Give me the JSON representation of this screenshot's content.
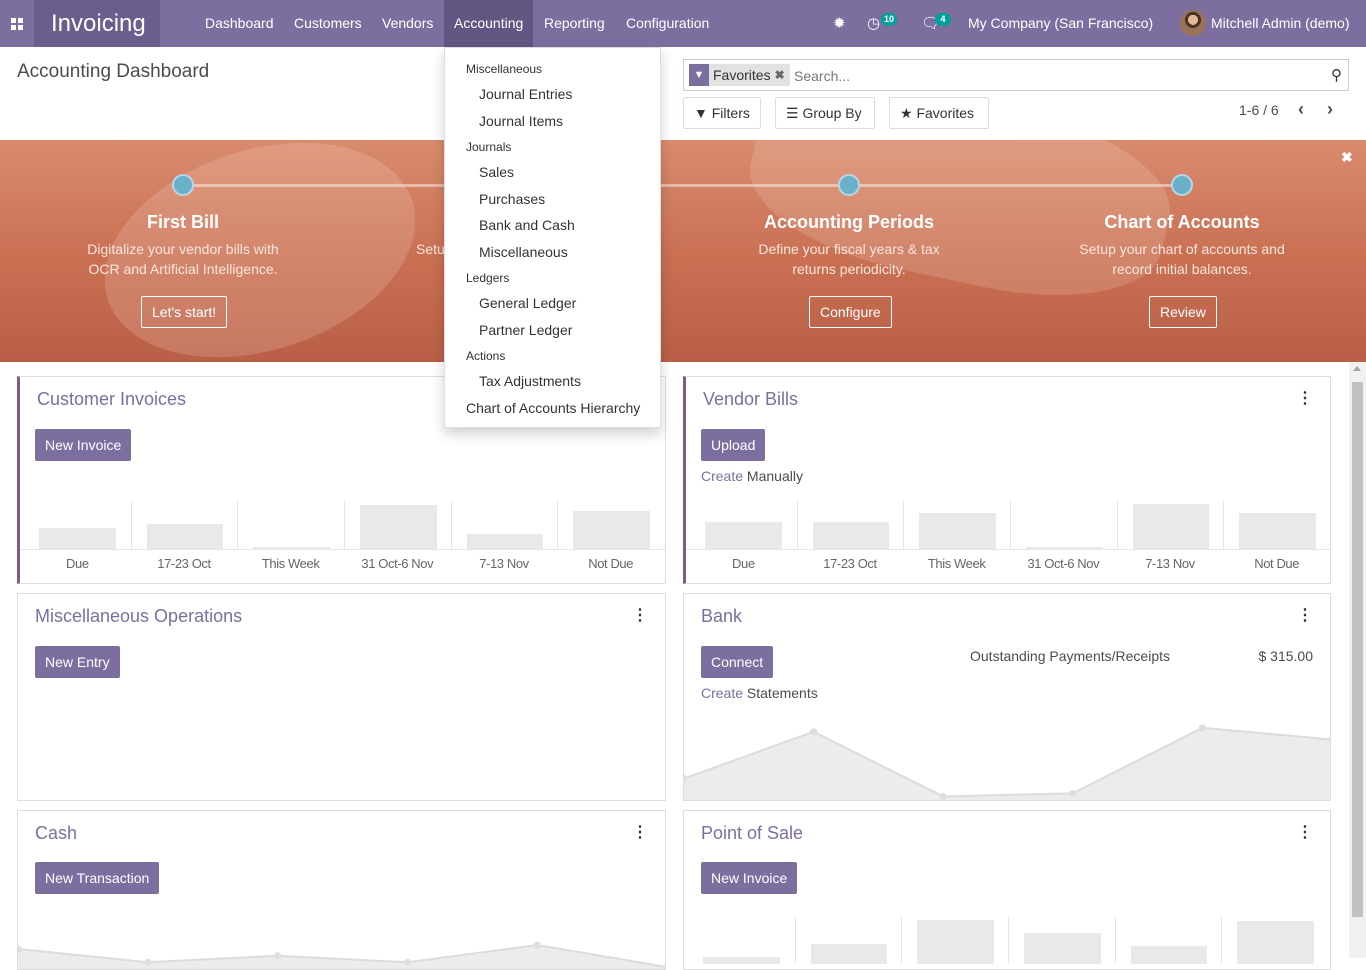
{
  "navbar": {
    "app_name": "Invoicing",
    "menus": [
      "Dashboard",
      "Customers",
      "Vendors",
      "Accounting",
      "Reporting",
      "Configuration"
    ],
    "active_menu": "Accounting",
    "activity_badge": "10",
    "messages_badge": "4",
    "company": "My Company (San Francisco)",
    "user": "Mitchell Admin (demo)"
  },
  "control_panel": {
    "title": "Accounting Dashboard",
    "search": {
      "facet": "Favorites",
      "placeholder": "Search..."
    },
    "filters_label": "Filters",
    "groupby_label": "Group By",
    "favorites_label": "Favorites",
    "pager": "1-6 / 6"
  },
  "accounting_menu": {
    "sections": [
      {
        "header": "Miscellaneous",
        "items": [
          "Journal Entries",
          "Journal Items"
        ]
      },
      {
        "header": "Journals",
        "items": [
          "Sales",
          "Purchases",
          "Bank and Cash",
          "Miscellaneous"
        ]
      },
      {
        "header": "Ledgers",
        "items": [
          "General Ledger",
          "Partner Ledger"
        ]
      },
      {
        "header": "Actions",
        "items": [
          "Tax Adjustments"
        ]
      }
    ],
    "last_item": "Chart of Accounts Hierarchy"
  },
  "onboarding": {
    "steps": [
      {
        "title": "First Bill",
        "desc1": "Digitalize your vendor bills with",
        "desc2": "OCR and Artificial Intelligence.",
        "button": "Let's start!"
      },
      {
        "title": "",
        "desc1": "Setu",
        "desc2": "",
        "button": ""
      },
      {
        "title": "Accounting Periods",
        "desc1": "Define your fiscal years & tax",
        "desc2": "returns periodicity.",
        "button": "Configure"
      },
      {
        "title": "Chart of Accounts",
        "desc1": "Setup your chart of accounts and",
        "desc2": "record initial balances.",
        "button": "Review"
      }
    ]
  },
  "cards": {
    "customer_invoices": {
      "title": "Customer Invoices",
      "button": "New Invoice",
      "chart": {
        "labels": [
          "Due",
          "17-23 Oct",
          "This Week",
          "31 Oct-6 Nov",
          "7-13 Nov",
          "Not Due"
        ],
        "values": [
          0.45,
          0.55,
          0.04,
          0.95,
          0.32,
          0.82
        ]
      }
    },
    "vendor_bills": {
      "title": "Vendor Bills",
      "button": "Upload",
      "link_prefix": "Create",
      "link_suffix": " Manually",
      "chart": {
        "labels": [
          "Due",
          "17-23 Oct",
          "This Week",
          "31 Oct-6 Nov",
          "7-13 Nov",
          "Not Due"
        ],
        "values": [
          0.58,
          0.58,
          0.78,
          0.0,
          0.98,
          0.78
        ]
      }
    },
    "misc_operations": {
      "title": "Miscellaneous Operations",
      "button": "New Entry"
    },
    "bank": {
      "title": "Bank",
      "button": "Connect",
      "link_prefix": "Create",
      "link_suffix": " Statements",
      "outstanding_label": "Outstanding Payments/Receipts",
      "outstanding_value": "$ 315.00",
      "chart": {
        "values": [
          0.25,
          0.85,
          0.02,
          0.06,
          0.9,
          0.75
        ]
      }
    },
    "cash": {
      "title": "Cash",
      "button": "New Transaction",
      "chart": {
        "values": [
          0.45,
          0.12,
          0.28,
          0.12,
          0.55,
          0.0
        ]
      }
    },
    "pos": {
      "title": "Point of Sale",
      "button": "New Invoice",
      "chart": {
        "values": [
          0.15,
          0.45,
          1.0,
          0.7,
          0.4,
          0.98
        ]
      }
    }
  }
}
